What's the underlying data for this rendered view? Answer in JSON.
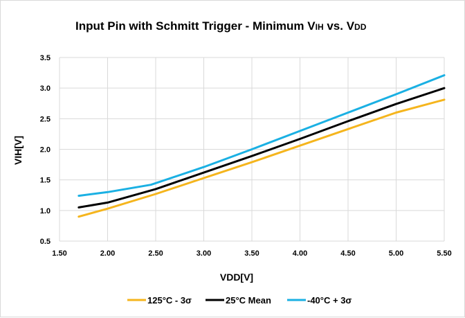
{
  "chart_data": {
    "type": "line",
    "title": {
      "main": "Input Pin with Schmitt Trigger - Minimum V",
      "sub1": "IH",
      "mid": " vs. V",
      "sub2": "DD"
    },
    "xlabel": "VDD[V]",
    "ylabel": "VIH[V]",
    "xlim": [
      1.5,
      5.5
    ],
    "ylim": [
      0.5,
      3.5
    ],
    "xticks": [
      "1.50",
      "2.00",
      "2.50",
      "3.00",
      "3.50",
      "4.00",
      "4.50",
      "5.00",
      "5.50"
    ],
    "yticks": [
      "0.5",
      "1.0",
      "1.5",
      "2.0",
      "2.5",
      "3.0",
      "3.5"
    ],
    "grid": true,
    "legend_position": "bottom",
    "series": [
      {
        "name": "125°C - 3σ",
        "color": "#f5b51d",
        "x": [
          1.7,
          2.0,
          2.5,
          3.0,
          3.5,
          4.0,
          4.5,
          5.0,
          5.5
        ],
        "y": [
          0.9,
          1.03,
          1.27,
          1.53,
          1.79,
          2.06,
          2.33,
          2.6,
          2.81
        ]
      },
      {
        "name": "25°C Mean",
        "color": "#000000",
        "x": [
          1.7,
          2.0,
          2.5,
          3.0,
          3.5,
          4.0,
          4.5,
          5.0,
          5.5
        ],
        "y": [
          1.05,
          1.13,
          1.35,
          1.62,
          1.89,
          2.17,
          2.46,
          2.74,
          3.0
        ]
      },
      {
        "name": "-40°C + 3σ",
        "color": "#1ab0e3",
        "x": [
          1.7,
          2.0,
          2.45,
          3.0,
          3.5,
          4.0,
          4.5,
          5.0,
          5.5
        ],
        "y": [
          1.24,
          1.3,
          1.42,
          1.71,
          2.0,
          2.3,
          2.6,
          2.9,
          3.21
        ]
      }
    ]
  }
}
